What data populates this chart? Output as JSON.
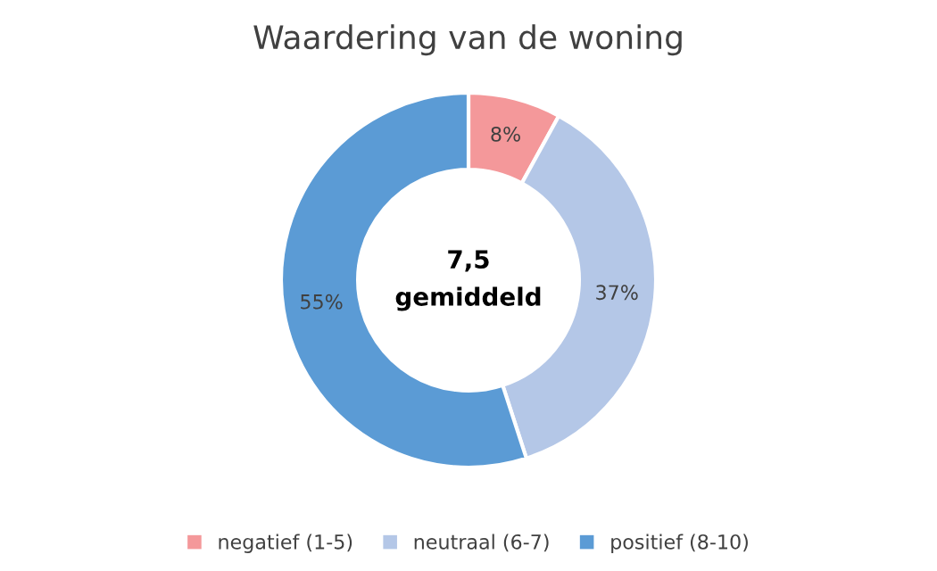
{
  "chart_data": {
    "type": "donut",
    "title": "Waardering van de woning",
    "categories": [
      "negatief (1-5)",
      "neutraal (6-7)",
      "positief (8-10)"
    ],
    "values": [
      8,
      37,
      55
    ],
    "colors": [
      "#f4989a",
      "#b4c7e7",
      "#5b9bd5"
    ],
    "value_labels": [
      "8%",
      "37%",
      "55%"
    ],
    "annotations": [
      "7,5",
      "gemiddeld"
    ],
    "legend": "bottom"
  }
}
